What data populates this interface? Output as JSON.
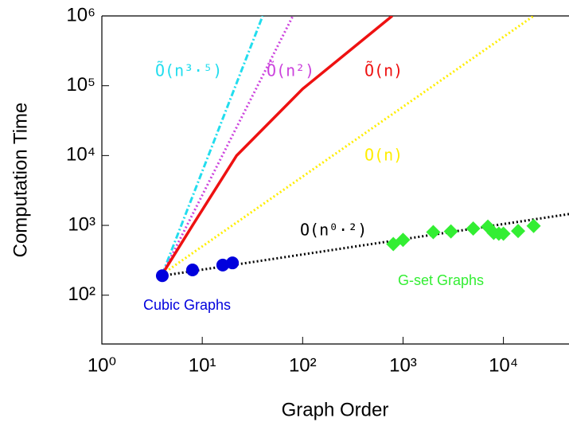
{
  "chart_data": {
    "type": "scatter",
    "xlabel": "Graph Order",
    "ylabel": "Computation Time",
    "xscale": "log",
    "yscale": "log",
    "xlim": [
      1,
      45000
    ],
    "ylim": [
      20,
      1000000
    ],
    "xticks": [
      {
        "value": 1,
        "label": "10⁰"
      },
      {
        "value": 10,
        "label": "10¹"
      },
      {
        "value": 100,
        "label": "10²"
      },
      {
        "value": 1000,
        "label": "10³"
      },
      {
        "value": 10000,
        "label": "10⁴"
      }
    ],
    "yticks": [
      {
        "value": 100,
        "label": "10²"
      },
      {
        "value": 1000,
        "label": "10³"
      },
      {
        "value": 10000,
        "label": "10⁴"
      },
      {
        "value": 100000,
        "label": "10⁵"
      },
      {
        "value": 1000000,
        "label": "10⁶"
      }
    ],
    "grid": false,
    "series": [
      {
        "name": "Õ(n³·⁵)",
        "color": "#22ddee",
        "style": "dashdot",
        "x": [
          4,
          40
        ],
        "values": [
          200,
          1000000
        ]
      },
      {
        "name": "Õ(n²)",
        "color": "#cc44dd",
        "style": "dotted",
        "x": [
          4,
          80
        ],
        "values": [
          200,
          1000000
        ]
      },
      {
        "name": "Õ(n)",
        "color": "#ee1111",
        "style": "solid",
        "x": [
          4,
          8,
          22,
          100,
          780
        ],
        "values": [
          200,
          1000,
          10000,
          90000,
          1000000
        ]
      },
      {
        "name": "O(n)",
        "color": "#ffee00",
        "style": "dotted",
        "x": [
          4,
          20000
        ],
        "values": [
          200,
          1000000
        ]
      },
      {
        "name": "O(n⁰·²)",
        "color": "#000000",
        "style": "dotted",
        "x": [
          4,
          45000
        ],
        "values": [
          190,
          1450
        ]
      },
      {
        "name": "Cubic Graphs",
        "color": "#0000dd",
        "marker": "circle",
        "x": [
          4,
          8,
          16,
          20
        ],
        "values": [
          190,
          230,
          270,
          290
        ]
      },
      {
        "name": "G-set Graphs",
        "color": "#33ee33",
        "marker": "diamond",
        "x": [
          800,
          1000,
          2000,
          3000,
          5000,
          7000,
          8000,
          9000,
          10000,
          14000,
          20000
        ],
        "values": [
          540,
          620,
          800,
          820,
          900,
          960,
          780,
          760,
          760,
          830,
          980
        ]
      }
    ]
  }
}
